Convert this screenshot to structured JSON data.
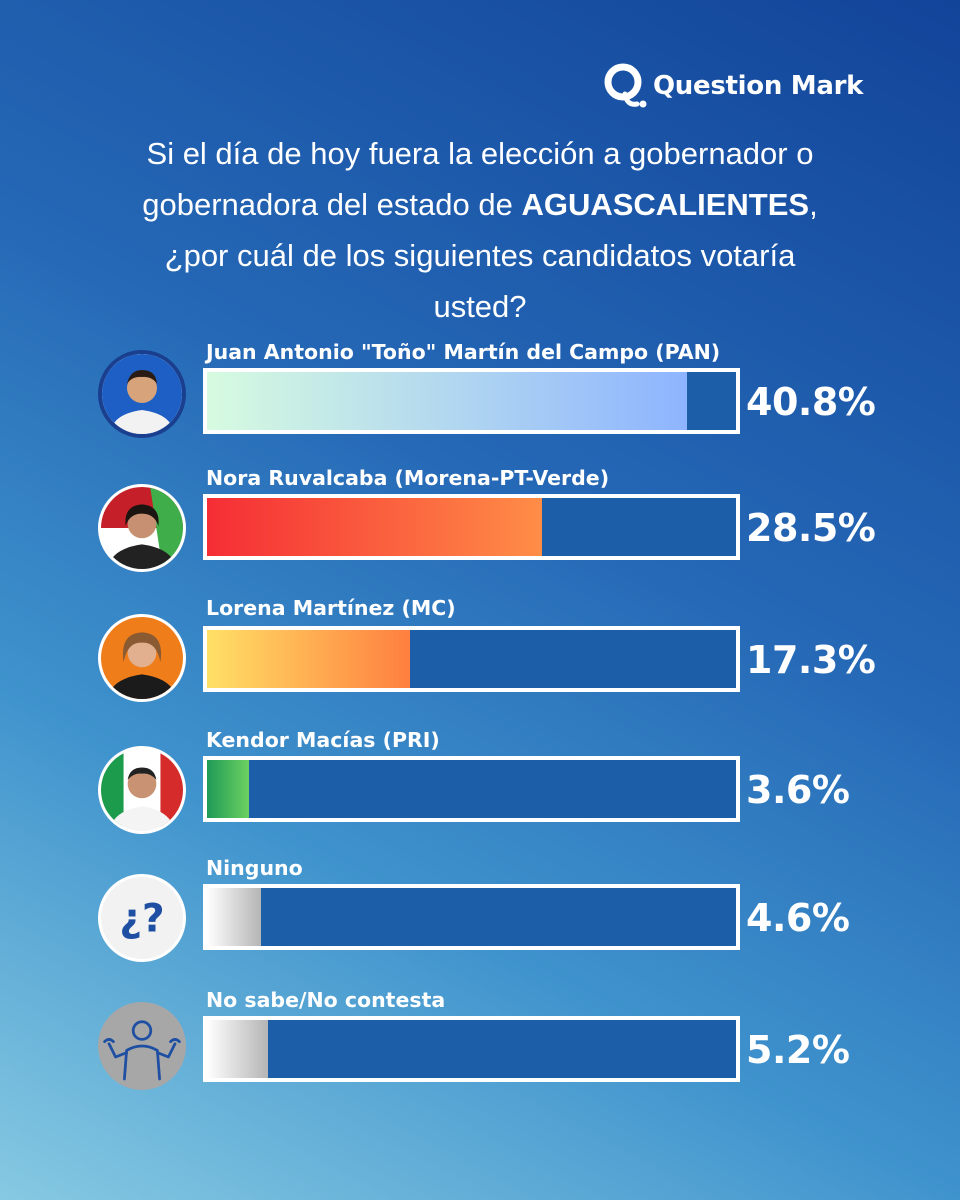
{
  "brand": {
    "name": "Question Mark"
  },
  "question": {
    "line1": "Si el día de hoy fuera la elección a gobernador o",
    "line2_prefix": "gobernadora del estado de ",
    "line2_bold": "AGUASCALIENTES",
    "line2_suffix": ",",
    "line3": "¿por cuál de los siguientes candidatos votaría",
    "line4": "usted?"
  },
  "chart_data": {
    "type": "bar",
    "orientation": "horizontal",
    "title": "Si el día de hoy fuera la elección a gobernador o gobernadora del estado de AGUASCALIENTES, ¿por cuál de los siguientes candidatos votaría usted?",
    "xlim": [
      0,
      45
    ],
    "categories": [
      "Juan Antonio \"Toño\" Martín del Campo (PAN)",
      "Nora Ruvalcaba (Morena-PT-Verde)",
      "Lorena Martínez (MC)",
      "Kendor Macías (PRI)",
      "Ninguno",
      "No sabe/No contesta"
    ],
    "values": [
      40.8,
      28.5,
      17.3,
      3.6,
      4.6,
      5.2
    ],
    "labels": [
      "40.8%",
      "28.5%",
      "17.3%",
      "3.6%",
      "4.6%",
      "5.2%"
    ],
    "fill_colors": [
      [
        "#d6fbe0",
        "#8eb4ff"
      ],
      [
        "#f52d35",
        "#ff8d47"
      ],
      [
        "#ffe066",
        "#ff7f3f"
      ],
      [
        "#1f9a57",
        "#6cd160"
      ],
      [
        "#ffffff",
        "#b5b5b5"
      ],
      [
        "#ffffff",
        "#b5b5b5"
      ]
    ]
  },
  "icons": {
    "avatars": [
      "candidate-pan-photo",
      "candidate-morena-photo",
      "candidate-mc-photo",
      "candidate-pri-photo",
      "question-mark-icon",
      "shrug-person-icon"
    ],
    "unknown_glyph": "¿?"
  }
}
